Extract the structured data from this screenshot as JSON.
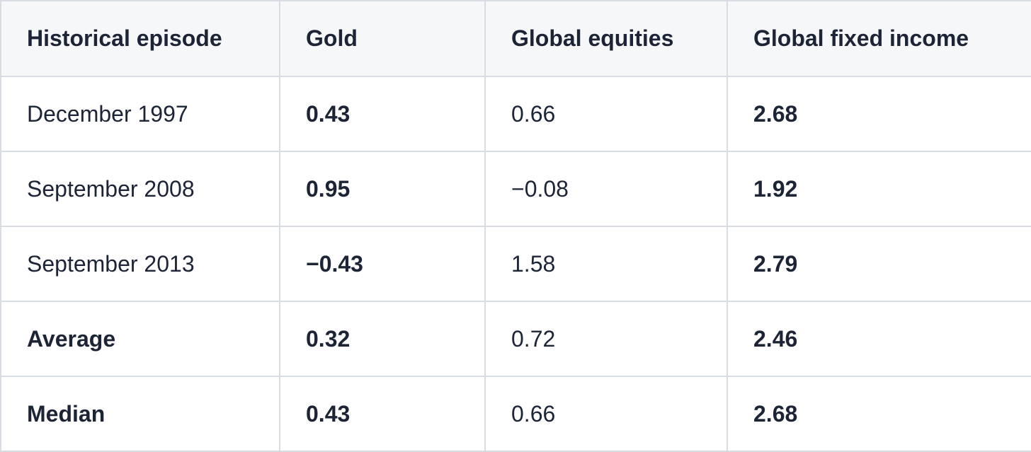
{
  "table": {
    "header": [
      "Historical episode",
      "Gold",
      "Global equities",
      "Global fixed income"
    ],
    "rows": [
      [
        "December 1997",
        "0.43",
        "0.66",
        "2.68"
      ],
      [
        "September 2008",
        "0.95",
        "−0.08",
        "1.92"
      ],
      [
        "September 2013",
        "−0.43",
        "1.58",
        "2.79"
      ],
      [
        "Average",
        "0.32",
        "0.72",
        "2.46"
      ],
      [
        "Median",
        "0.43",
        "0.66",
        "2.68"
      ]
    ]
  }
}
